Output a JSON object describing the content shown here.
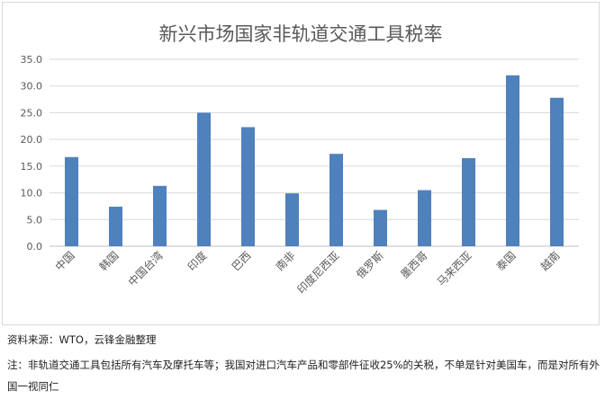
{
  "chart_data": {
    "type": "bar",
    "title": "新兴市场国家非轨道交通工具税率",
    "xlabel": "",
    "ylabel": "",
    "categories": [
      "中国",
      "韩国",
      "中国台湾",
      "印度",
      "巴西",
      "南非",
      "印度尼西亚",
      "俄罗斯",
      "墨西哥",
      "马来西亚",
      "泰国",
      "越南"
    ],
    "series": [
      {
        "values": [
          16.7,
          7.4,
          11.3,
          25.0,
          22.3,
          9.9,
          17.3,
          6.8,
          10.5,
          16.5,
          32.0,
          27.8
        ]
      }
    ],
    "ylim": [
      0,
      35
    ],
    "yticks": [
      "0.0",
      "5.0",
      "10.0",
      "15.0",
      "20.0",
      "25.0",
      "30.0",
      "35.0"
    ],
    "grid": true,
    "legend": "none",
    "bar_color": "#4f81bd"
  },
  "footer": {
    "source": "资料来源：WTO，云锋金融整理",
    "note": "注：非轨道交通工具包括所有汽车及摩托车等；我国对进口汽车产品和零部件征收25%的关税，不单是针对美国车，而是对所有外国一视同仁"
  }
}
